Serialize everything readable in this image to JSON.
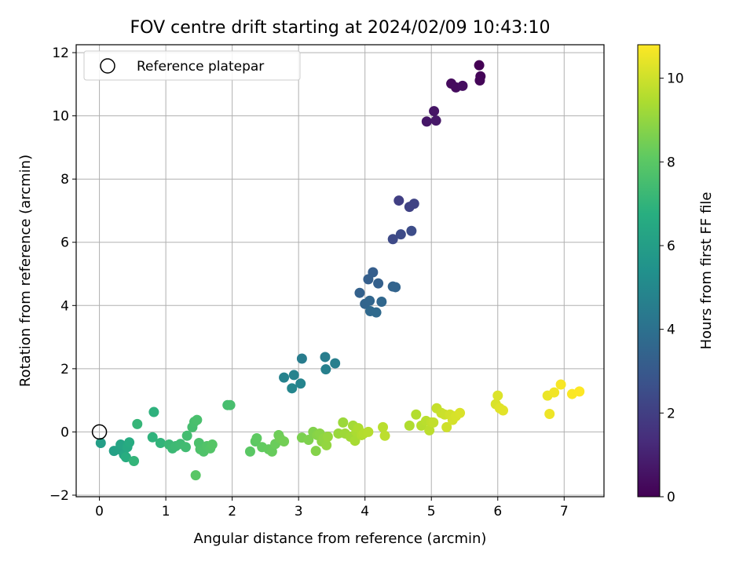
{
  "chart_data": {
    "type": "scatter",
    "title": "FOV centre drift starting at 2024/02/09 10:43:10",
    "xlabel": "Angular distance from reference (arcmin)",
    "ylabel": "Rotation from reference (arcmin)",
    "xlim": [
      -0.35,
      7.6
    ],
    "ylim": [
      -2.05,
      12.25
    ],
    "xticks": [
      "0",
      "1",
      "2",
      "3",
      "4",
      "5",
      "6",
      "7"
    ],
    "yticks": [
      "−2",
      "0",
      "2",
      "4",
      "6",
      "8",
      "10",
      "12"
    ],
    "grid": true,
    "legend": {
      "placement": "top-left",
      "entries": [
        "Reference platepar"
      ]
    },
    "reference_point": {
      "x": 0,
      "y": 0,
      "marker": "open-circle"
    },
    "colorbar": {
      "label": "Hours from first FF file",
      "range": [
        0,
        10.8
      ],
      "ticks": [
        "0",
        "2",
        "4",
        "6",
        "8",
        "10"
      ],
      "colormap": "viridis"
    },
    "series": [
      {
        "points": [
          {
            "x": 5.72,
            "y": 11.6,
            "c": 0.0
          },
          {
            "x": 5.74,
            "y": 11.25,
            "c": 0.1
          },
          {
            "x": 5.73,
            "y": 11.12,
            "c": 0.15
          },
          {
            "x": 5.3,
            "y": 11.02,
            "c": 0.3
          },
          {
            "x": 5.37,
            "y": 10.9,
            "c": 0.35
          },
          {
            "x": 5.47,
            "y": 10.95,
            "c": 0.4
          },
          {
            "x": 5.04,
            "y": 10.15,
            "c": 0.6
          },
          {
            "x": 4.93,
            "y": 9.82,
            "c": 0.65
          },
          {
            "x": 5.07,
            "y": 9.85,
            "c": 0.7
          },
          {
            "x": 4.51,
            "y": 7.32,
            "c": 2.0
          },
          {
            "x": 4.67,
            "y": 7.12,
            "c": 2.1
          },
          {
            "x": 4.74,
            "y": 7.22,
            "c": 2.15
          },
          {
            "x": 4.42,
            "y": 6.1,
            "c": 2.4
          },
          {
            "x": 4.54,
            "y": 6.25,
            "c": 2.45
          },
          {
            "x": 4.7,
            "y": 6.36,
            "c": 2.5
          },
          {
            "x": 4.12,
            "y": 5.05,
            "c": 3.2
          },
          {
            "x": 4.05,
            "y": 4.83,
            "c": 3.25
          },
          {
            "x": 4.2,
            "y": 4.7,
            "c": 3.3
          },
          {
            "x": 3.92,
            "y": 4.4,
            "c": 3.35
          },
          {
            "x": 4.42,
            "y": 4.6,
            "c": 3.4
          },
          {
            "x": 4.46,
            "y": 4.58,
            "c": 3.45
          },
          {
            "x": 4.0,
            "y": 4.05,
            "c": 3.5
          },
          {
            "x": 4.07,
            "y": 4.15,
            "c": 3.55
          },
          {
            "x": 4.25,
            "y": 4.12,
            "c": 3.6
          },
          {
            "x": 4.08,
            "y": 3.82,
            "c": 3.65
          },
          {
            "x": 4.17,
            "y": 3.78,
            "c": 3.7
          },
          {
            "x": 3.05,
            "y": 2.32,
            "c": 4.5
          },
          {
            "x": 3.4,
            "y": 2.37,
            "c": 4.55
          },
          {
            "x": 3.55,
            "y": 2.17,
            "c": 4.6
          },
          {
            "x": 3.41,
            "y": 1.98,
            "c": 4.65
          },
          {
            "x": 2.78,
            "y": 1.72,
            "c": 4.75
          },
          {
            "x": 2.93,
            "y": 1.8,
            "c": 4.8
          },
          {
            "x": 3.03,
            "y": 1.53,
            "c": 4.85
          },
          {
            "x": 2.9,
            "y": 1.38,
            "c": 4.9
          },
          {
            "x": 0.02,
            "y": -0.35,
            "c": 6.0
          },
          {
            "x": 0.22,
            "y": -0.6,
            "c": 6.1
          },
          {
            "x": 0.3,
            "y": -0.55,
            "c": 6.2
          },
          {
            "x": 0.32,
            "y": -0.4,
            "c": 6.3
          },
          {
            "x": 0.37,
            "y": -0.72,
            "c": 6.4
          },
          {
            "x": 0.42,
            "y": -0.48,
            "c": 6.5
          },
          {
            "x": 0.45,
            "y": -0.33,
            "c": 6.6
          },
          {
            "x": 0.4,
            "y": -0.8,
            "c": 6.7
          },
          {
            "x": 0.82,
            "y": 0.63,
            "c": 6.9
          },
          {
            "x": 0.8,
            "y": -0.17,
            "c": 6.95
          },
          {
            "x": 0.92,
            "y": -0.35,
            "c": 7.0
          },
          {
            "x": 0.52,
            "y": -0.92,
            "c": 7.05
          },
          {
            "x": 0.57,
            "y": 0.25,
            "c": 7.1
          },
          {
            "x": 1.05,
            "y": -0.4,
            "c": 7.2
          },
          {
            "x": 1.1,
            "y": -0.52,
            "c": 7.25
          },
          {
            "x": 1.15,
            "y": -0.45,
            "c": 7.3
          },
          {
            "x": 1.22,
            "y": -0.38,
            "c": 7.35
          },
          {
            "x": 1.3,
            "y": -0.48,
            "c": 7.4
          },
          {
            "x": 1.32,
            "y": -0.12,
            "c": 7.45
          },
          {
            "x": 1.4,
            "y": 0.15,
            "c": 7.5
          },
          {
            "x": 1.43,
            "y": 0.32,
            "c": 7.55
          },
          {
            "x": 1.47,
            "y": 0.38,
            "c": 7.6
          },
          {
            "x": 1.5,
            "y": -0.35,
            "c": 7.65
          },
          {
            "x": 1.52,
            "y": -0.55,
            "c": 7.7
          },
          {
            "x": 1.57,
            "y": -0.62,
            "c": 7.75
          },
          {
            "x": 1.62,
            "y": -0.45,
            "c": 7.8
          },
          {
            "x": 1.67,
            "y": -0.52,
            "c": 7.85
          },
          {
            "x": 1.7,
            "y": -0.4,
            "c": 7.9
          },
          {
            "x": 1.45,
            "y": -1.37,
            "c": 7.95
          },
          {
            "x": 1.93,
            "y": 0.85,
            "c": 7.5
          },
          {
            "x": 1.97,
            "y": 0.85,
            "c": 7.55
          },
          {
            "x": 2.27,
            "y": -0.62,
            "c": 8.0
          },
          {
            "x": 2.35,
            "y": -0.3,
            "c": 8.05
          },
          {
            "x": 2.37,
            "y": -0.2,
            "c": 8.1
          },
          {
            "x": 2.45,
            "y": -0.48,
            "c": 8.15
          },
          {
            "x": 2.55,
            "y": -0.55,
            "c": 8.2
          },
          {
            "x": 2.6,
            "y": -0.62,
            "c": 8.25
          },
          {
            "x": 2.65,
            "y": -0.38,
            "c": 8.3
          },
          {
            "x": 2.7,
            "y": -0.1,
            "c": 8.35
          },
          {
            "x": 2.72,
            "y": -0.2,
            "c": 8.4
          },
          {
            "x": 2.78,
            "y": -0.3,
            "c": 8.45
          },
          {
            "x": 3.05,
            "y": -0.18,
            "c": 8.6
          },
          {
            "x": 3.15,
            "y": -0.25,
            "c": 8.65
          },
          {
            "x": 3.22,
            "y": 0.0,
            "c": 8.7
          },
          {
            "x": 3.26,
            "y": -0.6,
            "c": 8.75
          },
          {
            "x": 3.28,
            "y": -0.1,
            "c": 8.8
          },
          {
            "x": 3.32,
            "y": -0.05,
            "c": 8.85
          },
          {
            "x": 3.35,
            "y": -0.3,
            "c": 8.9
          },
          {
            "x": 3.38,
            "y": -0.2,
            "c": 8.95
          },
          {
            "x": 3.42,
            "y": -0.42,
            "c": 9.0
          },
          {
            "x": 3.44,
            "y": -0.15,
            "c": 9.05
          },
          {
            "x": 3.6,
            "y": -0.05,
            "c": 9.1
          },
          {
            "x": 3.67,
            "y": 0.3,
            "c": 9.15
          },
          {
            "x": 3.7,
            "y": -0.05,
            "c": 9.2
          },
          {
            "x": 3.78,
            "y": -0.15,
            "c": 9.25
          },
          {
            "x": 3.82,
            "y": 0.2,
            "c": 9.3
          },
          {
            "x": 3.85,
            "y": -0.28,
            "c": 9.35
          },
          {
            "x": 3.87,
            "y": 0.0,
            "c": 9.4
          },
          {
            "x": 3.9,
            "y": 0.12,
            "c": 9.45
          },
          {
            "x": 3.95,
            "y": -0.1,
            "c": 9.5
          },
          {
            "x": 3.98,
            "y": -0.05,
            "c": 9.55
          },
          {
            "x": 4.05,
            "y": 0.0,
            "c": 9.6
          },
          {
            "x": 4.27,
            "y": 0.15,
            "c": 9.65
          },
          {
            "x": 4.3,
            "y": -0.12,
            "c": 9.7
          },
          {
            "x": 4.67,
            "y": 0.2,
            "c": 9.5
          },
          {
            "x": 4.77,
            "y": 0.55,
            "c": 9.55
          },
          {
            "x": 4.85,
            "y": 0.2,
            "c": 9.6
          },
          {
            "x": 4.92,
            "y": 0.35,
            "c": 9.65
          },
          {
            "x": 4.97,
            "y": 0.05,
            "c": 9.7
          },
          {
            "x": 5.0,
            "y": 0.3,
            "c": 9.75
          },
          {
            "x": 5.03,
            "y": 0.3,
            "c": 9.8
          },
          {
            "x": 5.08,
            "y": 0.75,
            "c": 9.85
          },
          {
            "x": 5.15,
            "y": 0.6,
            "c": 9.9
          },
          {
            "x": 5.2,
            "y": 0.55,
            "c": 9.95
          },
          {
            "x": 5.23,
            "y": 0.15,
            "c": 10.0
          },
          {
            "x": 5.28,
            "y": 0.55,
            "c": 10.05
          },
          {
            "x": 5.32,
            "y": 0.38,
            "c": 10.1
          },
          {
            "x": 5.37,
            "y": 0.5,
            "c": 10.15
          },
          {
            "x": 5.43,
            "y": 0.6,
            "c": 10.2
          },
          {
            "x": 5.97,
            "y": 0.88,
            "c": 10.2
          },
          {
            "x": 6.0,
            "y": 1.15,
            "c": 10.25
          },
          {
            "x": 6.03,
            "y": 0.75,
            "c": 10.3
          },
          {
            "x": 6.08,
            "y": 0.68,
            "c": 10.35
          },
          {
            "x": 6.75,
            "y": 1.15,
            "c": 10.5
          },
          {
            "x": 6.78,
            "y": 0.57,
            "c": 10.55
          },
          {
            "x": 6.85,
            "y": 1.25,
            "c": 10.6
          },
          {
            "x": 6.95,
            "y": 1.5,
            "c": 10.7
          },
          {
            "x": 7.12,
            "y": 1.2,
            "c": 10.75
          },
          {
            "x": 7.23,
            "y": 1.28,
            "c": 10.8
          }
        ]
      }
    ]
  }
}
